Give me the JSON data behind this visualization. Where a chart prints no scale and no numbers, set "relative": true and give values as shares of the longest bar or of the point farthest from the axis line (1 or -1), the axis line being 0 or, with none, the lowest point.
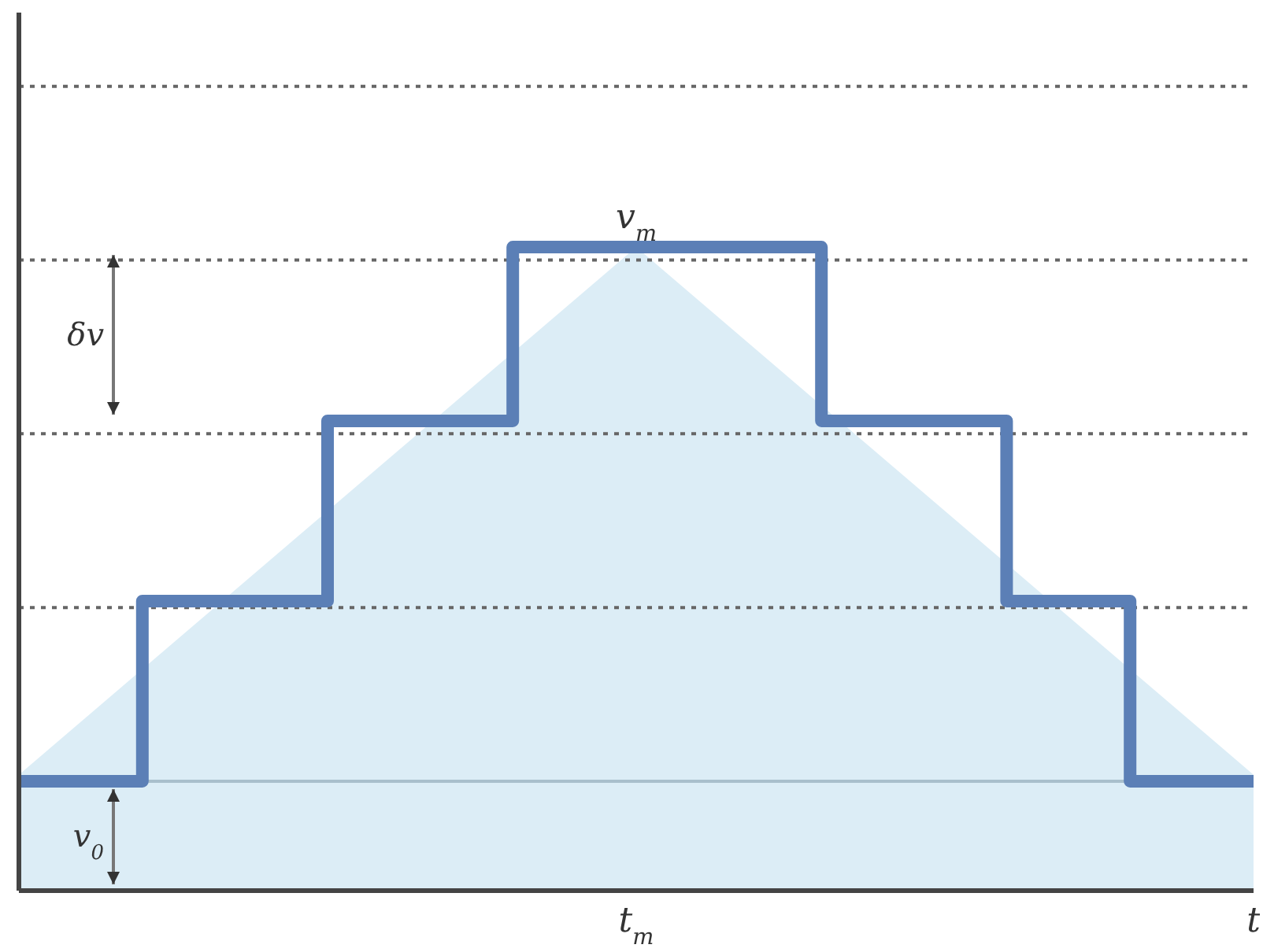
{
  "chart_data": {
    "type": "step",
    "relative": true,
    "categories": [
      null,
      null,
      null,
      null,
      null,
      null,
      null,
      null,
      null,
      null,
      "t$_{m}$",
      null,
      null,
      null,
      null,
      null,
      null,
      null,
      null,
      null,
      "t"
    ],
    "series": [
      {
        "type": "area",
        "color": "#dcedf6",
        "values": [
          0.18,
          null,
          null,
          null,
          null,
          null,
          null,
          null,
          null,
          null,
          1,
          null,
          null,
          null,
          null,
          null,
          null,
          null,
          null,
          null,
          0.18
        ]
      },
      {
        "color": "#5b7fb6",
        "values": [
          0.17,
          0.17,
          0.45,
          0.45,
          0.45,
          0.73,
          0.73,
          0.73,
          1,
          1,
          1,
          1,
          1,
          0.73,
          0.73,
          0.73,
          0.45,
          0.45,
          0.17,
          0.17,
          0.17
        ]
      }
    ],
    "annotations": [
      {
        "text": "v$_{m}$",
        "x": "t$_{m}$",
        "y": 1
      },
      "v$_{0}$",
      "δv"
    ],
    "grid": "y",
    "tick_labels": "x",
    "line_style": "solid"
  }
}
